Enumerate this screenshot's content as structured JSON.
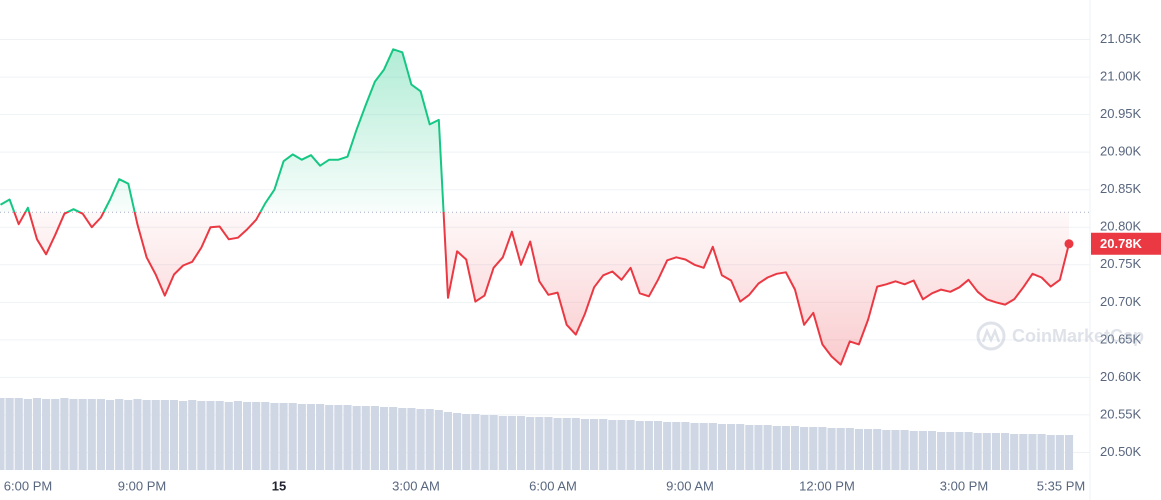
{
  "chart_data": {
    "type": "line",
    "x": [
      -0.1,
      0.1,
      0.3,
      0.5,
      0.7,
      0.9,
      1.1,
      1.3,
      1.5,
      1.7,
      1.9,
      2.1,
      2.3,
      2.5,
      2.7,
      2.9,
      3.1,
      3.3,
      3.5,
      3.7,
      3.9,
      4.1,
      4.3,
      4.5,
      4.7,
      4.9,
      5.1,
      5.3,
      5.5,
      5.7,
      5.9,
      6.1,
      6.3,
      6.5,
      6.7,
      6.9,
      7.1,
      7.3,
      7.5,
      7.7,
      7.9,
      8.1,
      8.3,
      8.5,
      8.7,
      8.9,
      9.1,
      9.3,
      9.5,
      9.7,
      9.9,
      10.1,
      10.3,
      10.5,
      10.7,
      10.9,
      11.1,
      11.3,
      11.5,
      11.7,
      11.9,
      12.1,
      12.3,
      12.5,
      12.7,
      12.9,
      13.1,
      13.3,
      13.5,
      13.7,
      13.9,
      14.1,
      14.3,
      14.5,
      14.7,
      14.9,
      15.1,
      15.3,
      15.5,
      15.7,
      15.9,
      16.1,
      16.3,
      16.5,
      16.7,
      16.9,
      17.1,
      17.3,
      17.5,
      17.7,
      17.9,
      18.1,
      18.3,
      18.5,
      18.7,
      18.9,
      19.1,
      19.3,
      19.5,
      19.7,
      19.9,
      20.1,
      20.3,
      20.5,
      20.7,
      20.9,
      21.1,
      21.3,
      21.5,
      21.7,
      21.9,
      22.1,
      22.3,
      22.5,
      22.7,
      22.9,
      23.1,
      23.3
    ],
    "series": [
      {
        "name": "Price",
        "color_up": "#16c784",
        "color_down": "#ea3943",
        "values": [
          20830,
          20837,
          20804,
          20826,
          20784,
          20764,
          20790,
          20818,
          20824,
          20818,
          20800,
          20813,
          20837,
          20864,
          20858,
          20804,
          20760,
          20737,
          20709,
          20737,
          20749,
          20754,
          20773,
          20800,
          20801,
          20784,
          20786,
          20797,
          20810,
          20832,
          20850,
          20888,
          20897,
          20890,
          20896,
          20882,
          20890,
          20890,
          20894,
          20930,
          20963,
          20994,
          21010,
          21037,
          21033,
          20990,
          20981,
          20937,
          20943,
          20706,
          20768,
          20757,
          20701,
          20709,
          20746,
          20760,
          20794,
          20750,
          20781,
          20728,
          20710,
          20713,
          20670,
          20657,
          20685,
          20720,
          20736,
          20741,
          20730,
          20746,
          20712,
          20708,
          20730,
          20756,
          20760,
          20757,
          20750,
          20746,
          20774,
          20736,
          20729,
          20701,
          20710,
          20725,
          20733,
          20738,
          20740,
          20717,
          20670,
          20686,
          20644,
          20628,
          20617,
          20648,
          20644,
          20677,
          20721,
          20724,
          20728,
          20724,
          20729,
          20704,
          20712,
          20717,
          20714,
          20720,
          20730,
          20714,
          20704,
          20700,
          20697,
          20704,
          20720,
          20738,
          20733,
          20721,
          20730,
          20778
        ]
      },
      {
        "name": "Volume",
        "color": "#cfd6e4",
        "values": [
          72,
          72,
          72,
          71,
          72,
          71,
          71,
          72,
          71,
          71,
          71,
          71,
          70,
          71,
          70,
          71,
          70,
          70,
          70,
          70,
          69,
          70,
          69,
          69,
          69,
          68,
          69,
          68,
          68,
          68,
          67,
          67,
          67,
          66,
          66,
          66,
          65,
          65,
          65,
          64,
          64,
          64,
          63,
          63,
          62,
          62,
          61,
          61,
          60,
          58,
          57,
          56,
          56,
          55,
          55,
          54,
          54,
          54,
          53,
          53,
          53,
          52,
          52,
          52,
          51,
          51,
          51,
          50,
          50,
          50,
          49,
          49,
          49,
          48,
          48,
          48,
          47,
          47,
          47,
          46,
          46,
          46,
          45,
          45,
          45,
          44,
          44,
          44,
          43,
          43,
          43,
          42,
          42,
          42,
          41,
          41,
          41,
          40,
          40,
          40,
          39,
          39,
          39,
          38,
          38,
          38,
          38,
          37,
          37,
          37,
          37,
          36,
          36,
          36,
          36,
          35,
          35,
          35
        ]
      }
    ],
    "baseline": 20820,
    "last_price_label": "20.78K",
    "watermark": "CoinMarketCap",
    "xlim": [
      -0.11,
      23.76
    ],
    "xticks": [
      {
        "value": 0,
        "label": "6:00 PM"
      },
      {
        "value": 3,
        "label": "9:00 PM"
      },
      {
        "value": 6,
        "label": "15"
      },
      {
        "value": 9,
        "label": "3:00 AM"
      },
      {
        "value": 12,
        "label": "6:00 AM"
      },
      {
        "value": 15,
        "label": "9:00 AM"
      },
      {
        "value": 18,
        "label": "12:00 PM"
      },
      {
        "value": 21,
        "label": "3:00 PM"
      },
      {
        "value": 23.583,
        "label": "5:35 PM"
      }
    ],
    "ylim": [
      20470,
      21100
    ],
    "yticks": [
      {
        "value": 20500,
        "label": "20.50K"
      },
      {
        "value": 20550,
        "label": "20.55K"
      },
      {
        "value": 20600,
        "label": "20.60K"
      },
      {
        "value": 20650,
        "label": "20.65K"
      },
      {
        "value": 20700,
        "label": "20.70K"
      },
      {
        "value": 20750,
        "label": "20.75K"
      },
      {
        "value": 20800,
        "label": "20.80K"
      },
      {
        "value": 20850,
        "label": "20.85K"
      },
      {
        "value": 20900,
        "label": "20.90K"
      },
      {
        "value": 20950,
        "label": "20.95K"
      },
      {
        "value": 21000,
        "label": "21.00K"
      },
      {
        "value": 21050,
        "label": "21.05K"
      }
    ],
    "grid": true
  }
}
